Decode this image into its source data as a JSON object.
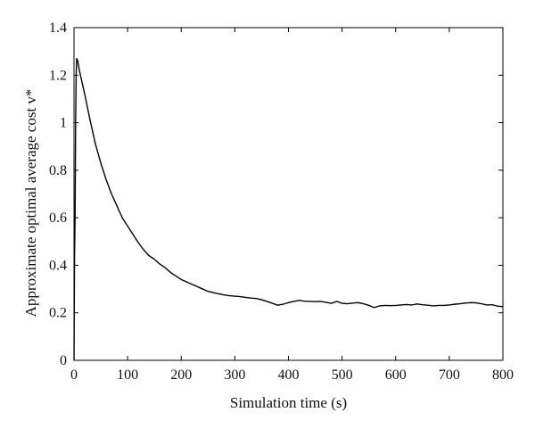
{
  "chart_data": {
    "type": "line",
    "title": "",
    "xlabel": "Simulation time (s)",
    "ylabel": "Approximate optimal average cost v*",
    "xlim": [
      0,
      800
    ],
    "ylim": [
      0,
      1.4
    ],
    "xticks": [
      0,
      100,
      200,
      300,
      400,
      500,
      600,
      700,
      800
    ],
    "xtick_labels": [
      "0",
      "100",
      "200",
      "300",
      "400",
      "500",
      "600",
      "700",
      "800"
    ],
    "yticks": [
      0,
      0.2,
      0.4,
      0.6,
      0.8,
      1.0,
      1.2,
      1.4
    ],
    "ytick_labels": [
      "0",
      "0.2",
      "0.4",
      "0.6",
      "0.8",
      "1",
      "1.2",
      "1.4"
    ],
    "grid": false,
    "legend": "none",
    "series": [
      {
        "color": "#000000",
        "x": [
          0,
          1,
          2,
          3,
          4,
          5,
          7,
          10,
          15,
          20,
          30,
          40,
          50,
          60,
          70,
          80,
          90,
          100,
          110,
          120,
          130,
          140,
          150,
          160,
          170,
          180,
          190,
          200,
          210,
          220,
          230,
          240,
          250,
          260,
          270,
          280,
          290,
          300,
          310,
          320,
          330,
          340,
          350,
          360,
          370,
          380,
          390,
          400,
          410,
          420,
          430,
          440,
          450,
          460,
          470,
          480,
          490,
          500,
          510,
          520,
          530,
          540,
          550,
          560,
          570,
          580,
          590,
          600,
          610,
          620,
          630,
          640,
          650,
          660,
          670,
          680,
          690,
          700,
          710,
          720,
          730,
          740,
          750,
          760,
          770,
          780,
          790,
          800
        ],
        "y": [
          0.0,
          0.45,
          0.6,
          1.0,
          1.2,
          1.27,
          1.26,
          1.22,
          1.17,
          1.12,
          1.01,
          0.91,
          0.83,
          0.76,
          0.7,
          0.65,
          0.6,
          0.565,
          0.53,
          0.495,
          0.465,
          0.44,
          0.425,
          0.405,
          0.39,
          0.37,
          0.355,
          0.34,
          0.33,
          0.32,
          0.31,
          0.3,
          0.29,
          0.285,
          0.28,
          0.275,
          0.272,
          0.27,
          0.268,
          0.265,
          0.262,
          0.26,
          0.255,
          0.248,
          0.24,
          0.232,
          0.236,
          0.243,
          0.248,
          0.252,
          0.249,
          0.248,
          0.247,
          0.248,
          0.244,
          0.24,
          0.248,
          0.24,
          0.238,
          0.241,
          0.243,
          0.238,
          0.231,
          0.222,
          0.229,
          0.231,
          0.23,
          0.231,
          0.233,
          0.235,
          0.233,
          0.237,
          0.234,
          0.232,
          0.229,
          0.231,
          0.231,
          0.233,
          0.236,
          0.238,
          0.241,
          0.243,
          0.242,
          0.238,
          0.233,
          0.234,
          0.228,
          0.226
        ]
      }
    ]
  }
}
